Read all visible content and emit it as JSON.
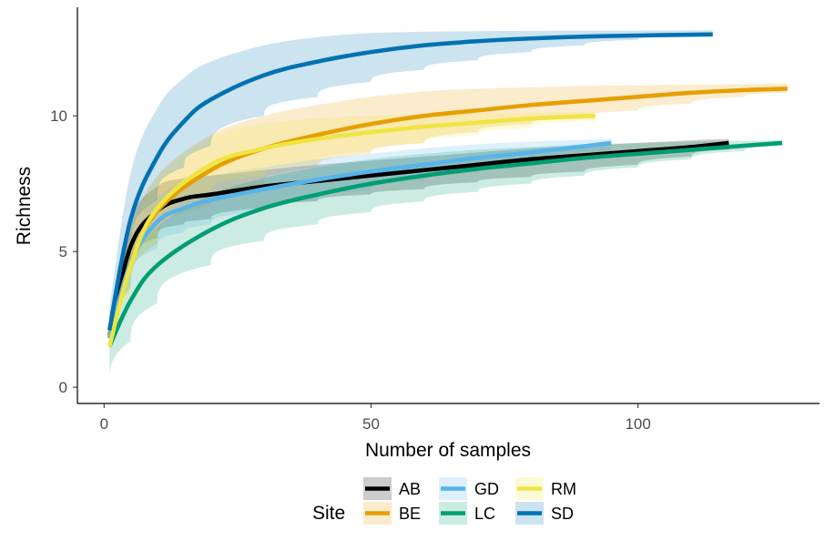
{
  "chart_data": {
    "type": "line",
    "xlabel": "Number of samples",
    "ylabel": "Richness",
    "xlim": [
      -5,
      134
    ],
    "ylim": [
      -0.6,
      14.0
    ],
    "xticks": [
      0,
      50,
      100
    ],
    "yticks": [
      0,
      5,
      10
    ],
    "xtick_labels": [
      "0",
      "50",
      "100"
    ],
    "ytick_labels": [
      "0",
      "5",
      "10"
    ],
    "grid": false,
    "legend": {
      "title": "Site",
      "position": "bottom"
    },
    "series": [
      {
        "name": "AB",
        "color": "#000000",
        "x": [
          1,
          5,
          10,
          15,
          20,
          30,
          40,
          50,
          60,
          70,
          80,
          90,
          100,
          110,
          117
        ],
        "y": [
          1.9,
          5.2,
          6.5,
          6.95,
          7.1,
          7.4,
          7.6,
          7.8,
          8.0,
          8.2,
          8.4,
          8.55,
          8.7,
          8.85,
          9.0
        ],
        "lower": [
          1.2,
          4.3,
          5.5,
          6.0,
          6.2,
          6.6,
          6.85,
          7.1,
          7.3,
          7.55,
          7.75,
          7.95,
          8.2,
          8.5,
          8.75
        ],
        "upper": [
          2.6,
          6.2,
          7.4,
          7.7,
          7.8,
          8.0,
          8.2,
          8.35,
          8.5,
          8.65,
          8.8,
          8.9,
          9.0,
          9.1,
          9.15
        ]
      },
      {
        "name": "BE",
        "color": "#E69F00",
        "x": [
          1,
          5,
          10,
          20,
          30,
          40,
          50,
          60,
          70,
          80,
          90,
          100,
          110,
          120,
          128
        ],
        "y": [
          1.9,
          4.6,
          6.5,
          8.0,
          8.8,
          9.3,
          9.7,
          10.0,
          10.2,
          10.4,
          10.55,
          10.7,
          10.85,
          10.95,
          11.0
        ],
        "lower": [
          1.2,
          3.6,
          5.3,
          6.7,
          7.5,
          8.1,
          8.6,
          9.0,
          9.4,
          9.7,
          9.95,
          10.2,
          10.45,
          10.7,
          10.85
        ],
        "upper": [
          2.7,
          5.8,
          7.8,
          9.3,
          10.0,
          10.4,
          10.7,
          10.9,
          11.0,
          11.05,
          11.1,
          11.12,
          11.15,
          11.17,
          11.2
        ]
      },
      {
        "name": "GD",
        "color": "#56B4E9",
        "x": [
          1,
          5,
          10,
          15,
          20,
          30,
          40,
          50,
          60,
          70,
          80,
          95
        ],
        "y": [
          1.8,
          4.6,
          6.1,
          6.6,
          6.9,
          7.3,
          7.65,
          7.95,
          8.2,
          8.45,
          8.65,
          9.0
        ],
        "lower": [
          1.1,
          3.7,
          5.1,
          5.7,
          6.0,
          6.5,
          6.9,
          7.25,
          7.6,
          7.9,
          8.2,
          8.7
        ],
        "upper": [
          2.5,
          5.6,
          7.0,
          7.5,
          7.8,
          8.1,
          8.4,
          8.6,
          8.8,
          8.95,
          9.05,
          9.15
        ]
      },
      {
        "name": "LC",
        "color": "#009E73",
        "x": [
          1,
          5,
          10,
          20,
          30,
          40,
          50,
          60,
          70,
          80,
          90,
          100,
          110,
          120,
          127
        ],
        "y": [
          1.5,
          3.2,
          4.5,
          5.8,
          6.6,
          7.1,
          7.5,
          7.8,
          8.05,
          8.25,
          8.45,
          8.6,
          8.75,
          8.9,
          9.0
        ],
        "lower": [
          0.3,
          1.7,
          3.1,
          4.5,
          5.4,
          6.0,
          6.45,
          6.85,
          7.2,
          7.5,
          7.8,
          8.1,
          8.4,
          8.7,
          8.9
        ],
        "upper": [
          2.6,
          4.6,
          5.9,
          7.1,
          7.7,
          8.1,
          8.4,
          8.6,
          8.75,
          8.85,
          8.95,
          9.0,
          9.05,
          9.08,
          9.1
        ]
      },
      {
        "name": "RM",
        "color": "#F0E442",
        "x": [
          1,
          5,
          10,
          20,
          30,
          40,
          50,
          60,
          70,
          80,
          92
        ],
        "y": [
          1.5,
          4.5,
          6.6,
          8.2,
          8.8,
          9.15,
          9.4,
          9.6,
          9.75,
          9.9,
          10.0
        ],
        "lower": [
          0.7,
          3.4,
          5.4,
          7.1,
          7.8,
          8.3,
          8.7,
          9.0,
          9.3,
          9.55,
          9.8
        ],
        "upper": [
          2.3,
          5.6,
          7.7,
          9.2,
          9.7,
          9.9,
          10.0,
          10.05,
          10.1,
          10.12,
          10.15
        ]
      },
      {
        "name": "SD",
        "color": "#0072B2",
        "x": [
          1,
          5,
          10,
          15,
          20,
          30,
          40,
          50,
          60,
          70,
          80,
          90,
          100,
          114
        ],
        "y": [
          2.1,
          6.2,
          8.5,
          9.8,
          10.6,
          11.5,
          12.0,
          12.35,
          12.6,
          12.75,
          12.85,
          12.92,
          12.96,
          13.0
        ],
        "lower": [
          1.3,
          4.8,
          6.9,
          8.1,
          8.9,
          10.0,
          10.7,
          11.25,
          11.7,
          12.05,
          12.35,
          12.6,
          12.8,
          12.95
        ],
        "upper": [
          2.9,
          7.9,
          10.3,
          11.4,
          12.0,
          12.6,
          12.9,
          13.05,
          13.1,
          13.12,
          13.13,
          13.14,
          13.14,
          13.15
        ]
      }
    ]
  }
}
